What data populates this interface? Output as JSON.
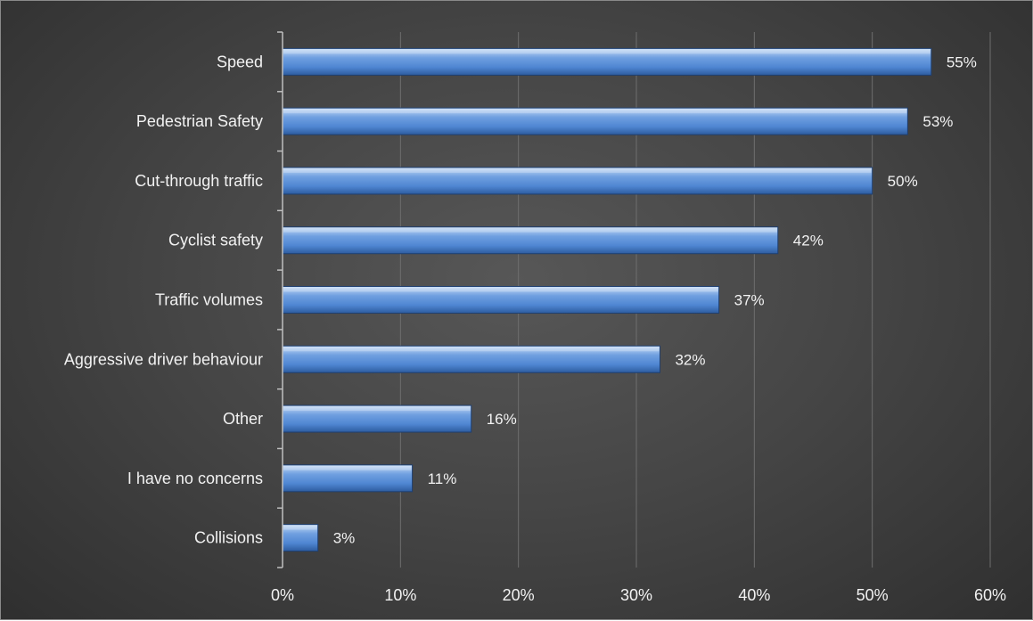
{
  "chart_data": {
    "type": "bar",
    "orientation": "horizontal",
    "categories": [
      "Speed",
      "Pedestrian Safety",
      "Cut-through traffic",
      "Cyclist safety",
      "Traffic volumes",
      "Aggressive driver behaviour",
      "Other",
      "I have no concerns",
      "Collisions"
    ],
    "values": [
      55,
      53,
      50,
      42,
      37,
      32,
      16,
      11,
      3
    ],
    "value_labels": [
      "55%",
      "53%",
      "50%",
      "42%",
      "37%",
      "32%",
      "16%",
      "11%",
      "3%"
    ],
    "xlim": [
      0,
      60
    ],
    "x_ticks": [
      0,
      10,
      20,
      30,
      40,
      50,
      60
    ],
    "x_tick_labels": [
      "0%",
      "10%",
      "20%",
      "30%",
      "40%",
      "50%",
      "60%"
    ],
    "grid": "vertical",
    "legend": "none",
    "colors": {
      "bar": "#5b8fd6",
      "bar_light": "#a9c8ef",
      "bar_dark": "#2f5fa6",
      "text": "#f2f2f2",
      "grid": "#6e6e6e",
      "axis": "#bfbfbf"
    }
  }
}
